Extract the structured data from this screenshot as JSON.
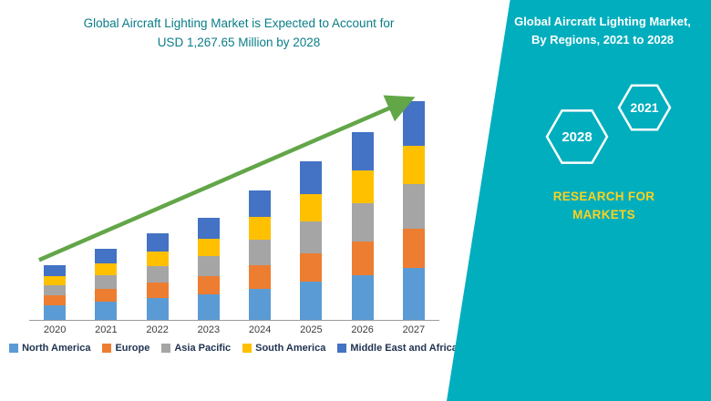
{
  "left": {
    "title_line1": "Global Aircraft Lighting Market is Expected to Account for",
    "title_line2": "USD 1,267.65 Million by 2028"
  },
  "right": {
    "title_line1": "Global Aircraft Lighting Market,",
    "title_line2": "By Regions, 2021 to 2028",
    "hexagons": [
      "2028",
      "2021"
    ],
    "brand_line1": "RESEARCH FOR",
    "brand_line2": "MARKETS"
  },
  "colors": {
    "panel_teal": "#00aebe",
    "title_teal": "#0a7d88",
    "brand_yellow": "#ffd21c",
    "arrow_green": "#62a648",
    "axis_gray": "#9b9b9b",
    "legend_text": "#1f3250"
  },
  "chart_data": {
    "type": "bar",
    "stacked": true,
    "title": "Global Aircraft Lighting Market is Expected to Account for USD 1,267.65 Million by 2028",
    "xlabel": "",
    "ylabel": "",
    "categories": [
      "2020",
      "2021",
      "2022",
      "2023",
      "2024",
      "2025",
      "2026",
      "2027"
    ],
    "series": [
      {
        "name": "North America",
        "color": "#5b9bd5",
        "values": [
          16,
          20,
          24,
          28,
          34,
          42,
          49,
          57
        ]
      },
      {
        "name": "Europe",
        "color": "#ed7d31",
        "values": [
          11,
          14,
          17,
          20,
          26,
          31,
          37,
          43
        ]
      },
      {
        "name": "Asia Pacific",
        "color": "#a5a5a5",
        "values": [
          11,
          15,
          18,
          22,
          28,
          35,
          42,
          49
        ]
      },
      {
        "name": "South America",
        "color": "#ffc000",
        "values": [
          10,
          13,
          16,
          19,
          25,
          30,
          36,
          42
        ]
      },
      {
        "name": "Middle East and Africa",
        "color": "#4472c4",
        "values": [
          12,
          16,
          20,
          23,
          29,
          36,
          42,
          49
        ]
      }
    ],
    "ylim": [
      0,
      260
    ],
    "units": "relative (no y-axis scale shown in figure)",
    "grid": false,
    "legend_position": "bottom",
    "annotations": [
      "green upward trend arrow from 2020 to 2027"
    ]
  }
}
